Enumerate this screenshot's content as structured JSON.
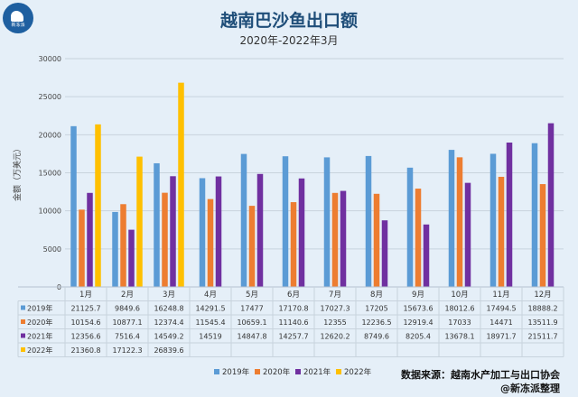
{
  "logo_text": "新冻派",
  "chart_data": {
    "type": "bar",
    "title": "越南巴沙鱼出口额",
    "subtitle": "2020年-2022年3月",
    "ylabel": "金额（万美元）",
    "xlabel": "",
    "ylim": [
      0,
      30000
    ],
    "yticks": [
      0,
      5000,
      10000,
      15000,
      20000,
      25000,
      30000
    ],
    "grid": true,
    "legend_position": "bottom",
    "categories": [
      "1月",
      "2月",
      "3月",
      "4月",
      "5月",
      "6月",
      "7月",
      "8月",
      "9月",
      "10月",
      "11月",
      "12月"
    ],
    "series": [
      {
        "name": "2019年",
        "color": "#5b9bd5",
        "values": [
          21125.7,
          9849.6,
          16248.8,
          14291.5,
          17477,
          17170.8,
          17027.3,
          17205,
          15673.6,
          18012.6,
          17494.5,
          18888.2
        ]
      },
      {
        "name": "2020年",
        "color": "#ed7d31",
        "values": [
          10154.6,
          10877.1,
          12374.4,
          11545.4,
          10659.1,
          11140.6,
          12355,
          12236.5,
          12919.4,
          17033,
          14471,
          13511.9
        ]
      },
      {
        "name": "2021年",
        "color": "#7030a0",
        "values": [
          12356.6,
          7516.4,
          14549.2,
          14519,
          14847.8,
          14257.7,
          12620.2,
          8749.6,
          8205.4,
          13678.1,
          18971.7,
          21511.7
        ]
      },
      {
        "name": "2022年",
        "color": "#ffc000",
        "values": [
          21360.8,
          17122.3,
          26839.6,
          null,
          null,
          null,
          null,
          null,
          null,
          null,
          null,
          null
        ]
      }
    ]
  },
  "source": {
    "line1": "数据来源：越南水产加工与出口协会",
    "line2": "@新冻派整理"
  }
}
